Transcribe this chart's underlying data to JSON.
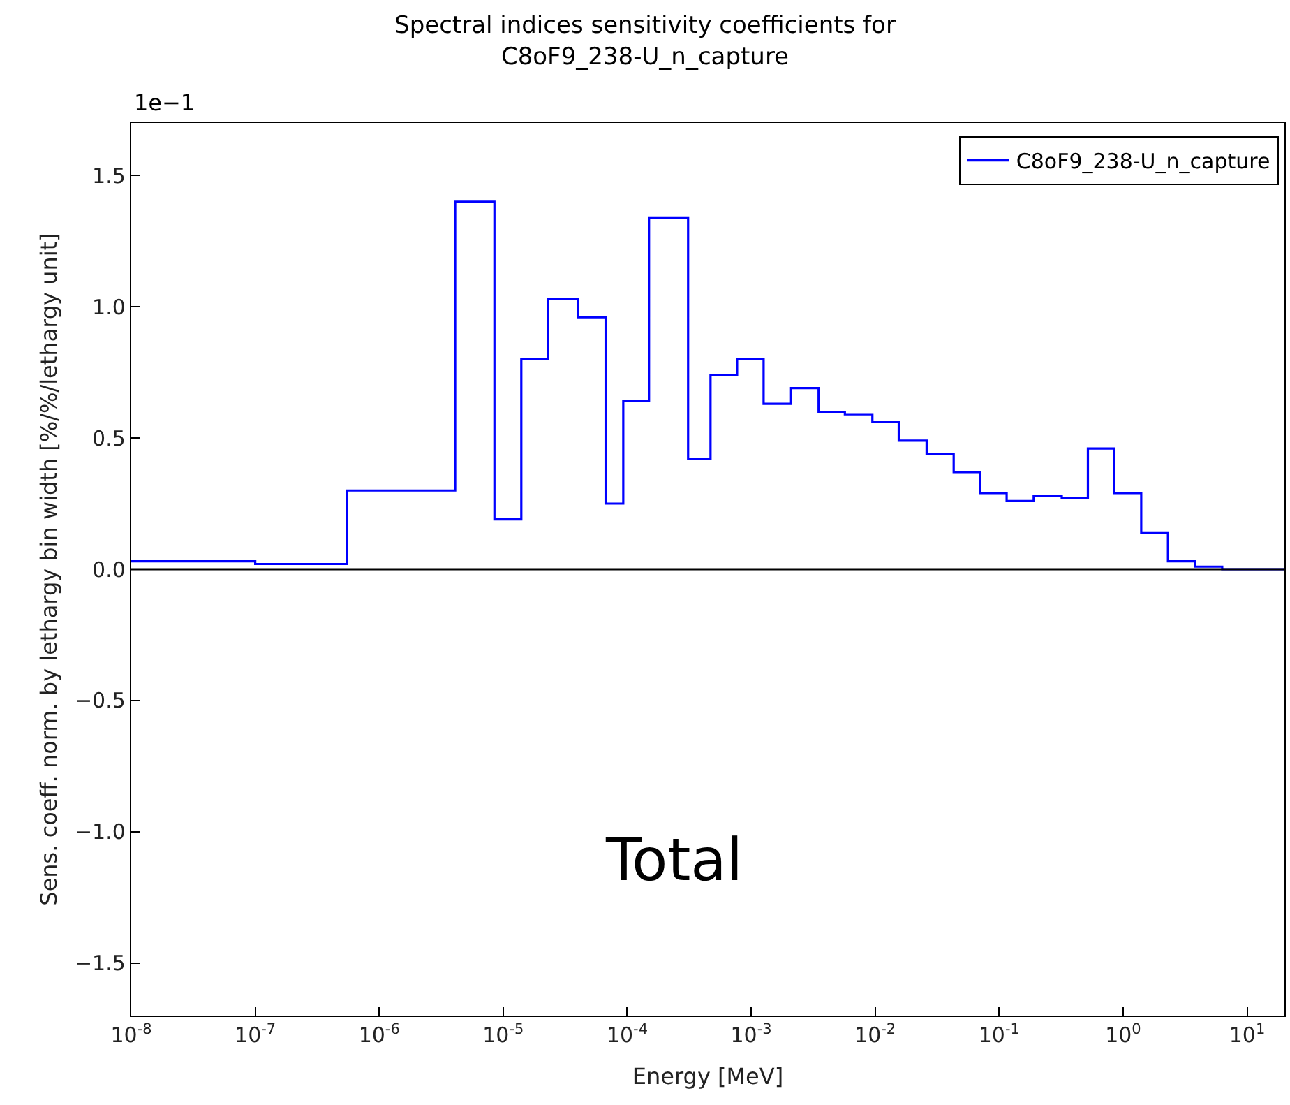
{
  "chart_data": {
    "type": "histogram",
    "title": "Spectral indices sensitivity coefficients for\nC8oF9_238-U_n_capture",
    "xlabel": "Energy [MeV]",
    "ylabel": "Sens. coeff. norm. by lethargy bin width [%/%/lethargy unit]",
    "log": "x",
    "bins": [
      1e-08,
      1e-07,
      5.5e-07,
      4.1e-06,
      8.5e-06,
      1.4e-05,
      2.3e-05,
      4e-05,
      6.7e-05,
      9.3e-05,
      0.00015,
      0.00031,
      0.00047,
      0.00077,
      0.00126,
      0.0021,
      0.0035,
      0.0057,
      0.0095,
      0.0155,
      0.026,
      0.043,
      0.07,
      0.115,
      0.19,
      0.32,
      0.52,
      0.85,
      1.4,
      2.3,
      3.8,
      6.3,
      20
    ],
    "series": [
      {
        "name": "C8oF9_238-U_n_capture",
        "color": "#0000ff",
        "values": [
          0.03,
          0.02,
          0.3,
          1.4,
          0.19,
          0.8,
          1.03,
          0.96,
          0.25,
          0.64,
          1.34,
          0.42,
          0.74,
          0.8,
          0.63,
          0.69,
          0.6,
          0.59,
          0.56,
          0.49,
          0.44,
          0.37,
          0.29,
          0.26,
          0.28,
          0.27,
          0.46,
          0.29,
          0.14,
          0.03,
          0.01,
          0.0
        ]
      }
    ],
    "xlim": [
      1e-08,
      20
    ],
    "xticks": [
      {
        "value": 1e-08,
        "label": "10$^{-8}$"
      },
      {
        "value": 1e-07,
        "label": "10$^{-7}$"
      },
      {
        "value": 1e-06,
        "label": "10$^{-6}$"
      },
      {
        "value": 1e-05,
        "label": "10$^{-5}$"
      },
      {
        "value": 0.0001,
        "label": "10$^{-4}$"
      },
      {
        "value": 0.001,
        "label": "10$^{-3}$"
      },
      {
        "value": 0.01,
        "label": "10$^{-2}$"
      },
      {
        "value": 0.1,
        "label": "10$^{-1}$"
      },
      {
        "value": 1,
        "label": "10$^{0}$"
      },
      {
        "value": 10,
        "label": "10$^{1}$"
      }
    ],
    "ylim": [
      -1.7,
      1.7
    ],
    "yticks": [
      {
        "value": -1.5,
        "label": "−1.5"
      },
      {
        "value": -1.0,
        "label": "−1.0"
      },
      {
        "value": -0.5,
        "label": "−0.5"
      },
      {
        "value": 0,
        "label": "0.0"
      },
      {
        "value": 0.5,
        "label": "0.5"
      },
      {
        "value": 1.0,
        "label": "1.0"
      },
      {
        "value": 1.5,
        "label": "1.5"
      }
    ],
    "ref_lines": [
      {
        "axis": "y",
        "value": 0,
        "color": "#000000"
      }
    ],
    "annotations": [
      "1e−1",
      "Total"
    ],
    "legend": "top right"
  }
}
